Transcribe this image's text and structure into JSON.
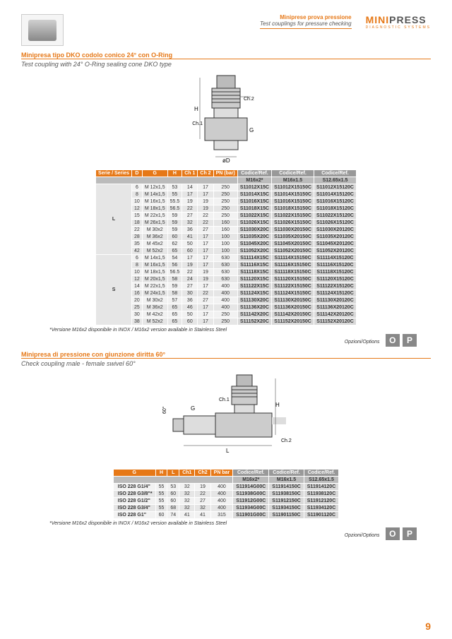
{
  "header": {
    "cat_it": "Miniprese prova pressione",
    "cat_en": "Test couplings for pressure checking",
    "logo_main_1": "MINI",
    "logo_main_2": "PRESS",
    "logo_sub": "DIAGNOSTIC SYSTEMS"
  },
  "section1": {
    "title_it": "Minipresa tipo DKO codolo conico 24° con O-Ring",
    "title_en": "Test coupling with 24° O-Ring sealing cone DKO type",
    "diagram_labels": {
      "h": "H",
      "ch2": "Ch.2",
      "ch1": "Ch.1",
      "g": "G",
      "d": "øD"
    },
    "columns": [
      "Serie / Series",
      "D",
      "G",
      "H",
      "Ch 1",
      "Ch 2",
      "PN (bar)"
    ],
    "ref_columns": [
      "Codice/Ref.",
      "Codice/Ref.",
      "Codice/Ref."
    ],
    "sub_ref": [
      "M16x2*",
      "M16x1.5",
      "S12.65x1.5"
    ],
    "groups": [
      {
        "series": "L",
        "rows": [
          {
            "d": "6",
            "g": "M 12x1,5",
            "h": "53",
            "c1": "14",
            "c2": "17",
            "pn": "250",
            "r": [
              "S11012X15C",
              "S11012X15150C",
              "S11012X15120C"
            ]
          },
          {
            "d": "8",
            "g": "M 14x1,5",
            "h": "55",
            "c1": "17",
            "c2": "17",
            "pn": "250",
            "r": [
              "S11014X15C",
              "S11014X15150C",
              "S11014X15120C"
            ]
          },
          {
            "d": "10",
            "g": "M 16x1,5",
            "h": "55.5",
            "c1": "19",
            "c2": "19",
            "pn": "250",
            "r": [
              "S11016X15C",
              "S11016X15150C",
              "S11016X15120C"
            ]
          },
          {
            "d": "12",
            "g": "M 18x1,5",
            "h": "56.5",
            "c1": "22",
            "c2": "19",
            "pn": "250",
            "r": [
              "S11018X15C",
              "S11018X15150C",
              "S11018X15120C"
            ]
          },
          {
            "d": "15",
            "g": "M 22x1,5",
            "h": "59",
            "c1": "27",
            "c2": "22",
            "pn": "250",
            "r": [
              "S11022X15C",
              "S11022X15150C",
              "S11022X15120C"
            ]
          },
          {
            "d": "18",
            "g": "M 26x1,5",
            "h": "59",
            "c1": "32",
            "c2": "22",
            "pn": "160",
            "r": [
              "S11026X15C",
              "S11026X15150C",
              "S11026X15120C"
            ]
          },
          {
            "d": "22",
            "g": "M 30x2",
            "h": "59",
            "c1": "36",
            "c2": "27",
            "pn": "160",
            "r": [
              "S11030X20C",
              "S11030X20150C",
              "S11030X20120C"
            ]
          },
          {
            "d": "28",
            "g": "M 36x2",
            "h": "60",
            "c1": "41",
            "c2": "17",
            "pn": "100",
            "r": [
              "S11035X20C",
              "S11035X20150C",
              "S11035X20120C"
            ]
          },
          {
            "d": "35",
            "g": "M 45x2",
            "h": "62",
            "c1": "50",
            "c2": "17",
            "pn": "100",
            "r": [
              "S11045X20C",
              "S11045X20150C",
              "S11045X20120C"
            ]
          },
          {
            "d": "42",
            "g": "M 52x2",
            "h": "65",
            "c1": "60",
            "c2": "17",
            "pn": "100",
            "r": [
              "S11052X20C",
              "S11052X20150C",
              "S11052X20120C"
            ]
          }
        ]
      },
      {
        "series": "S",
        "rows": [
          {
            "d": "6",
            "g": "M 14x1,5",
            "h": "54",
            "c1": "17",
            "c2": "17",
            "pn": "630",
            "r": [
              "S11114X15C",
              "S11114X15150C",
              "S11114X15120C"
            ]
          },
          {
            "d": "8",
            "g": "M 16x1,5",
            "h": "56",
            "c1": "19",
            "c2": "17",
            "pn": "630",
            "r": [
              "S11116X15C",
              "S11116X15150C",
              "S11116X15120C"
            ]
          },
          {
            "d": "10",
            "g": "M 18x1,5",
            "h": "56.5",
            "c1": "22",
            "c2": "19",
            "pn": "630",
            "r": [
              "S11118X15C",
              "S11118X15150C",
              "S11118X15120C"
            ]
          },
          {
            "d": "12",
            "g": "M 20x1,5",
            "h": "58",
            "c1": "24",
            "c2": "19",
            "pn": "630",
            "r": [
              "S11120X15C",
              "S11120X15150C",
              "S11120X15120C"
            ]
          },
          {
            "d": "14",
            "g": "M 22x1,5",
            "h": "59",
            "c1": "27",
            "c2": "17",
            "pn": "400",
            "r": [
              "S11122X15C",
              "S11122X15150C",
              "S11122X15120C"
            ]
          },
          {
            "d": "16",
            "g": "M 24x1,5",
            "h": "58",
            "c1": "30",
            "c2": "22",
            "pn": "400",
            "r": [
              "S11124X15C",
              "S11124X15150C",
              "S11124X15120C"
            ]
          },
          {
            "d": "20",
            "g": "M 30x2",
            "h": "57",
            "c1": "36",
            "c2": "27",
            "pn": "400",
            "r": [
              "S11130X20C",
              "S11130X20150C",
              "S11130X20120C"
            ]
          },
          {
            "d": "25",
            "g": "M 36x2",
            "h": "65",
            "c1": "46",
            "c2": "17",
            "pn": "400",
            "r": [
              "S11136X20C",
              "S11136X20150C",
              "S11136X20120C"
            ]
          },
          {
            "d": "30",
            "g": "M 42x2",
            "h": "65",
            "c1": "50",
            "c2": "17",
            "pn": "250",
            "r": [
              "S11142X20C",
              "S11142X20150C",
              "S11142X20120C"
            ]
          },
          {
            "d": "38",
            "g": "M 52x2",
            "h": "65",
            "c1": "60",
            "c2": "17",
            "pn": "250",
            "r": [
              "S11152X20C",
              "S11152X20150C",
              "S11152X20120C"
            ]
          }
        ]
      }
    ],
    "note": "*Versione M16x2 disponibile in INOX / M16x2 version available in Stainless Steel",
    "options_label": "Opzioni/Options",
    "options": [
      "O",
      "P"
    ]
  },
  "section2": {
    "title_it": "Minipresa di pressione con giunzione diritta 60°",
    "title_en": "Check coupling male - female swivel 60°",
    "diagram_labels": {
      "h": "H",
      "g": "G",
      "l": "L",
      "ch1": "Ch.1",
      "ch2": "Ch.2",
      "angle": "60°"
    },
    "columns": [
      "G",
      "H",
      "L",
      "Ch1",
      "Ch2",
      "PN bar"
    ],
    "ref_columns": [
      "Codice/Ref.",
      "Codice/Ref.",
      "Codice/Ref."
    ],
    "sub_ref": [
      "M16x2*",
      "M16x1.5",
      "S12.65x1.5"
    ],
    "rows": [
      {
        "g": "ISO 228 G1/4\"",
        "h": "55",
        "l": "53",
        "c1": "32",
        "c2": "19",
        "pn": "400",
        "r": [
          "S11914G00C",
          "S11914150C",
          "S11914120C"
        ]
      },
      {
        "g": "ISO 228 G3/8\"*",
        "h": "55",
        "l": "60",
        "c1": "32",
        "c2": "22",
        "pn": "400",
        "r": [
          "S11938G00C",
          "S11938150C",
          "S11938120C"
        ]
      },
      {
        "g": "ISO 228 G1/2\"",
        "h": "55",
        "l": "60",
        "c1": "32",
        "c2": "27",
        "pn": "400",
        "r": [
          "S11912G00C",
          "S11912150C",
          "S11912120C"
        ]
      },
      {
        "g": "ISO 228 G3/4\"",
        "h": "55",
        "l": "68",
        "c1": "32",
        "c2": "32",
        "pn": "400",
        "r": [
          "S11934G00C",
          "S11934150C",
          "S11934120C"
        ]
      },
      {
        "g": "ISO 228 G1\"",
        "h": "60",
        "l": "74",
        "c1": "41",
        "c2": "41",
        "pn": "315",
        "r": [
          "S11901G00C",
          "S11901150C",
          "S11901120C"
        ]
      }
    ],
    "note": "*Versione M16x2 disponibile in INOX / M16x2 version available in Stainless Steel",
    "options_label": "Opzioni/Options",
    "options": [
      "O",
      "P"
    ]
  },
  "page_number": "9",
  "colors": {
    "accent": "#e67817",
    "grey": "#888"
  }
}
